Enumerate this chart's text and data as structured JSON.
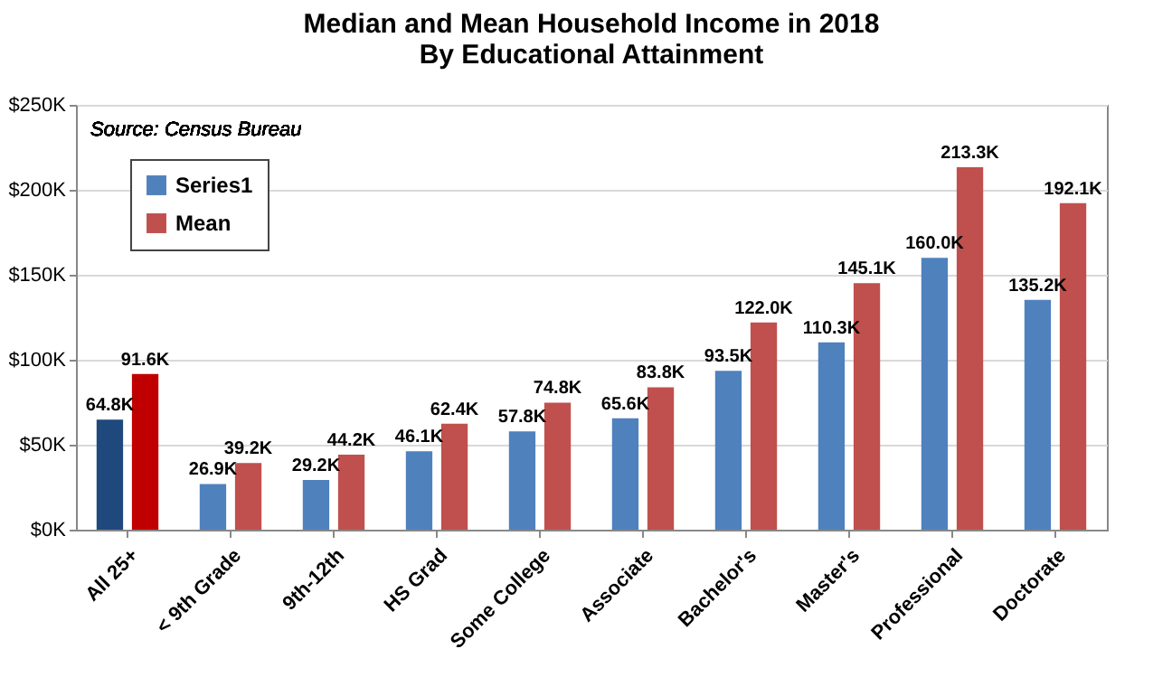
{
  "chart_data": {
    "type": "bar",
    "title": "Median and Mean Household Income in 2018\nBy Educational Attainment",
    "annotations": [
      "Source:  Census Bureau"
    ],
    "categories": [
      "All 25+",
      "< 9th Grade",
      "9th-12th",
      "HS Grad",
      "Some College",
      "Associate",
      "Bachelor's",
      "Master's",
      "Professional",
      "Doctorate"
    ],
    "series": [
      {
        "name": "Series1",
        "color": "#4f81bd",
        "colors": [
          "#1f497d",
          "#4f81bd",
          "#4f81bd",
          "#4f81bd",
          "#4f81bd",
          "#4f81bd",
          "#4f81bd",
          "#4f81bd",
          "#4f81bd",
          "#4f81bd"
        ],
        "values": [
          64.8,
          26.9,
          29.2,
          46.1,
          57.8,
          65.6,
          93.5,
          110.3,
          160.0,
          135.2
        ],
        "value_labels": [
          "64.8K",
          "26.9K",
          "29.2K",
          "46.1K",
          "57.8K",
          "65.6K",
          "93.5K",
          "110.3K",
          "160.0K",
          "135.2K"
        ]
      },
      {
        "name": "Mean",
        "color": "#c0504d",
        "colors": [
          "#c00000",
          "#c0504d",
          "#c0504d",
          "#c0504d",
          "#c0504d",
          "#c0504d",
          "#c0504d",
          "#c0504d",
          "#c0504d",
          "#c0504d"
        ],
        "values": [
          91.6,
          39.2,
          44.2,
          62.4,
          74.8,
          83.8,
          122.0,
          145.1,
          213.3,
          192.1
        ],
        "value_labels": [
          "91.6K",
          "39.2K",
          "44.2K",
          "62.4K",
          "74.8K",
          "83.8K",
          "122.0K",
          "145.1K",
          "213.3K",
          "192.1K"
        ]
      }
    ],
    "ylim": [
      0,
      250
    ],
    "yticks": [
      {
        "value": 0,
        "label": "$0K"
      },
      {
        "value": 50,
        "label": "$50K"
      },
      {
        "value": 100,
        "label": "$100K"
      },
      {
        "value": 150,
        "label": "$150K"
      },
      {
        "value": 200,
        "label": "$200K"
      },
      {
        "value": 250,
        "label": "$250K"
      }
    ],
    "grid": true,
    "legend": "top left"
  }
}
